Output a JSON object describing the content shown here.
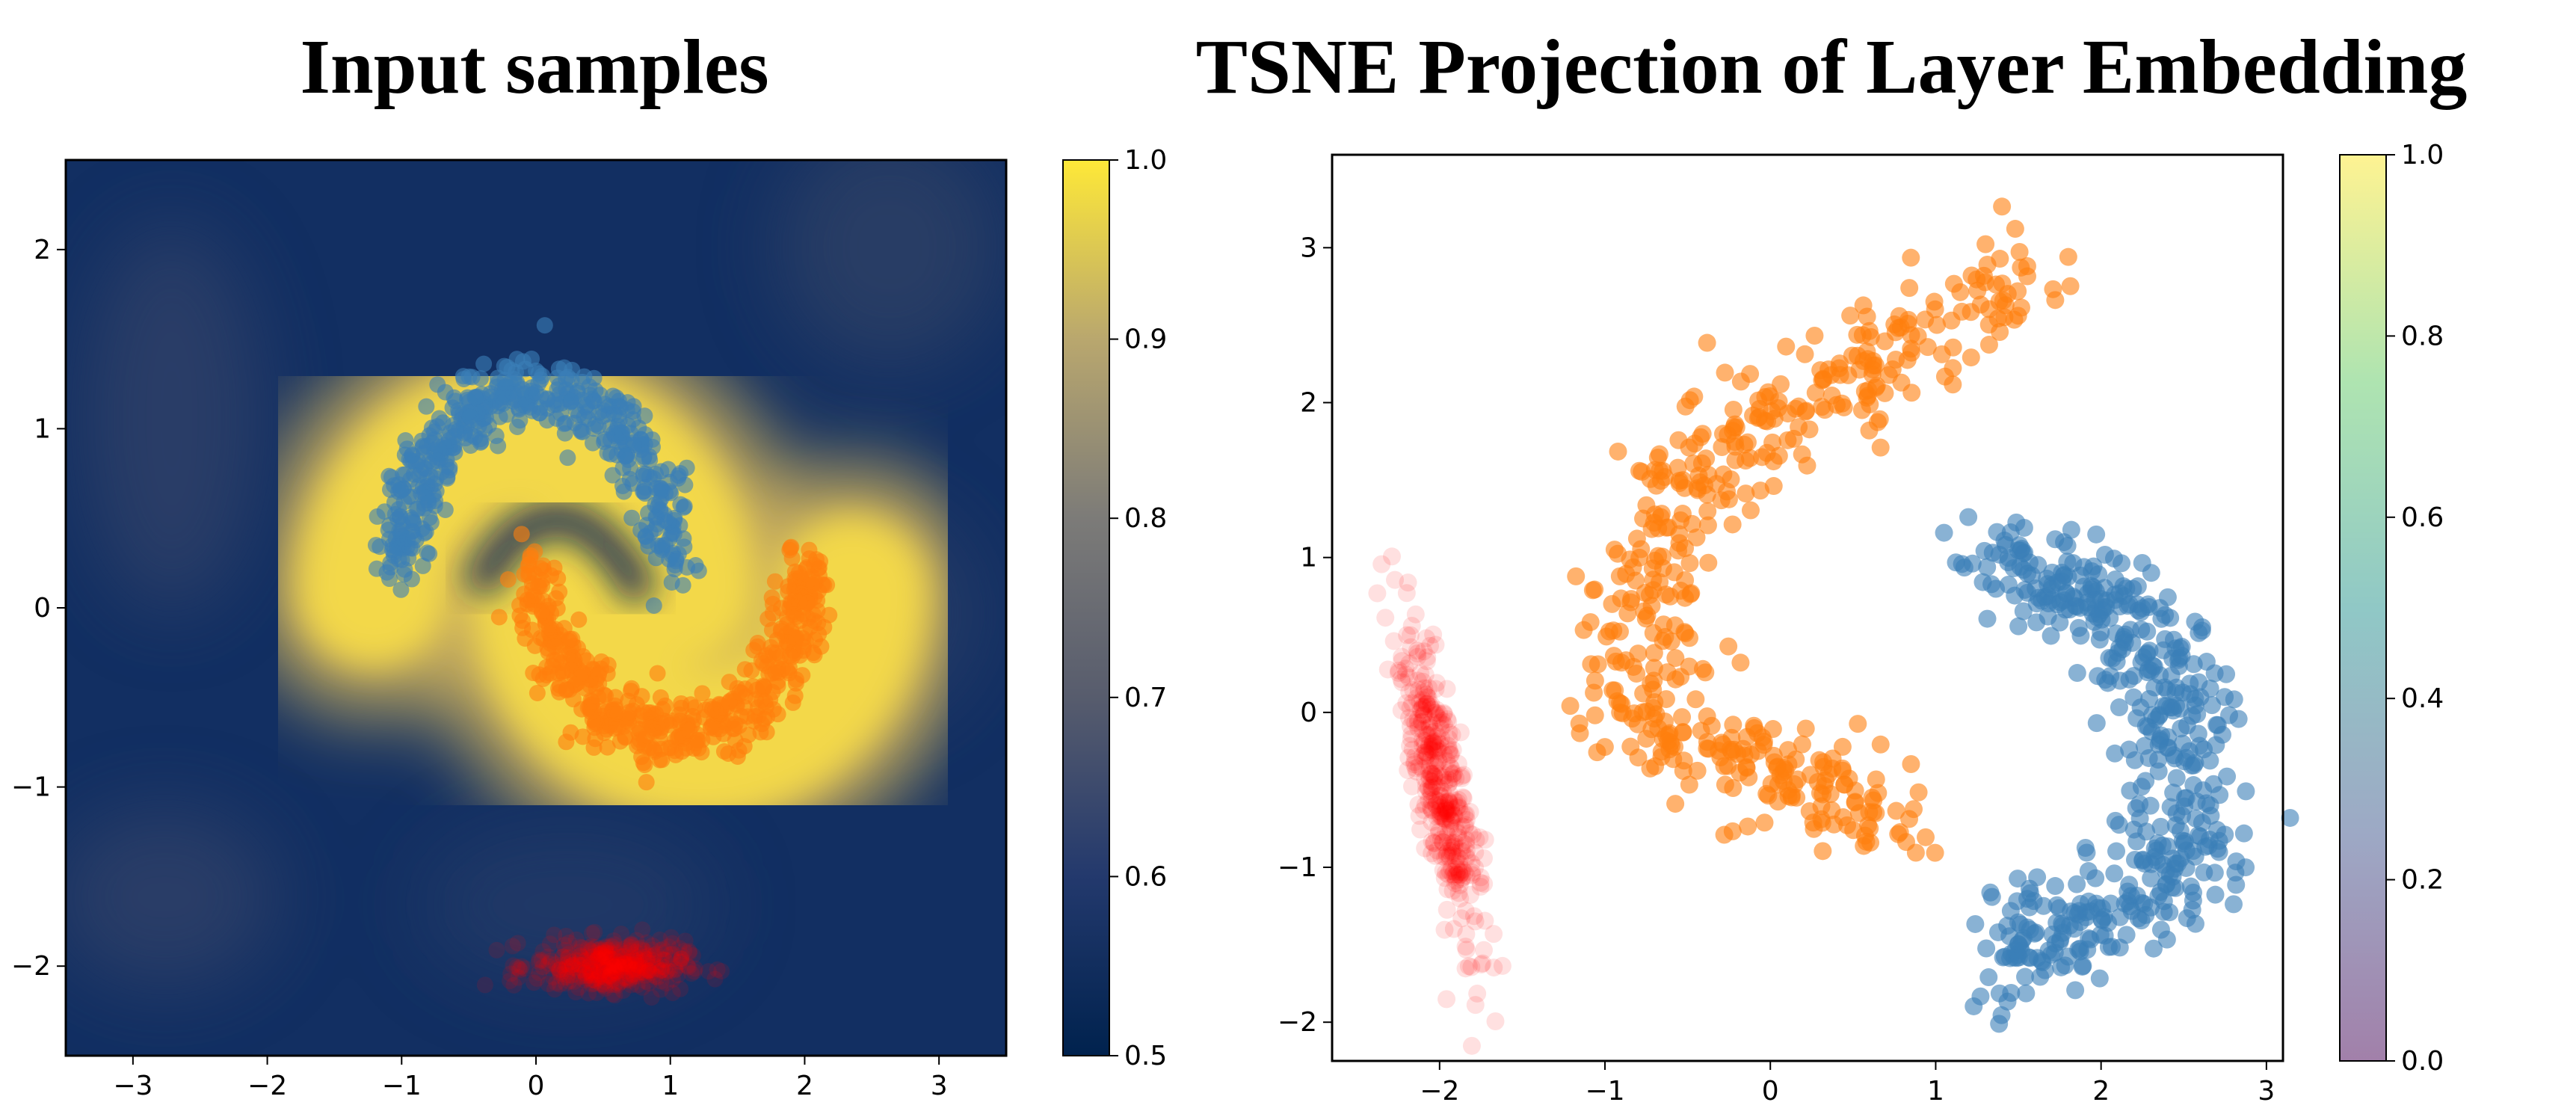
{
  "titles": {
    "left": "Input samples",
    "right": "TSNE Projection of Layer Embedding"
  },
  "chart_data": [
    {
      "type": "scatter",
      "title": "Input samples",
      "background": "heatmap",
      "xlim": [
        -3.5,
        3.5
      ],
      "ylim": [
        -2.5,
        2.5
      ],
      "xticks": [
        -3,
        -2,
        -1,
        0,
        1,
        2,
        3
      ],
      "yticks": [
        -2,
        -1,
        0,
        1,
        2
      ],
      "colorbar": {
        "colormap": "cividis",
        "range": [
          0.5,
          1.0
        ],
        "ticks": [
          "0.5",
          "0.6",
          "0.7",
          "0.8",
          "0.9",
          "1.0"
        ]
      },
      "series": [
        {
          "color": "#3a7fb8",
          "shape": "upper-moon",
          "center": [
            0.0,
            0.25
          ],
          "radius": 1.0,
          "angle_range": [
            0,
            180
          ],
          "points": 500,
          "noise": 0.1
        },
        {
          "color": "#ff7f0e",
          "shape": "lower-moon",
          "center": [
            1.0,
            0.25
          ],
          "radius": 1.0,
          "angle_range": [
            180,
            360
          ],
          "points": 500,
          "noise": 0.1
        },
        {
          "color": "#ff0000",
          "shape": "gaussian-blob",
          "center": [
            0.55,
            -2.0
          ],
          "spread": [
            0.28,
            0.07
          ],
          "points": 400
        }
      ]
    },
    {
      "type": "scatter",
      "title": "TSNE Projection of Layer Embedding",
      "xlim": [
        -2.65,
        3.1
      ],
      "ylim": [
        -2.25,
        3.6
      ],
      "xticks": [
        -2,
        -1,
        0,
        1,
        2,
        3
      ],
      "yticks": [
        -2,
        -1,
        0,
        1,
        2,
        3
      ],
      "colorbar": {
        "colormap": "viridis",
        "alpha": 0.5,
        "range": [
          0.0,
          1.0
        ],
        "ticks": [
          "0.0",
          "0.2",
          "0.4",
          "0.6",
          "0.8",
          "1.0"
        ]
      },
      "series": [
        {
          "color": "#ff7f0e",
          "shape": "arc",
          "points": 500
        },
        {
          "color": "#3a7fb8",
          "shape": "arc",
          "points": 500
        },
        {
          "color": "#ff0000",
          "shape": "elongated-blob",
          "points": 400
        }
      ]
    }
  ]
}
